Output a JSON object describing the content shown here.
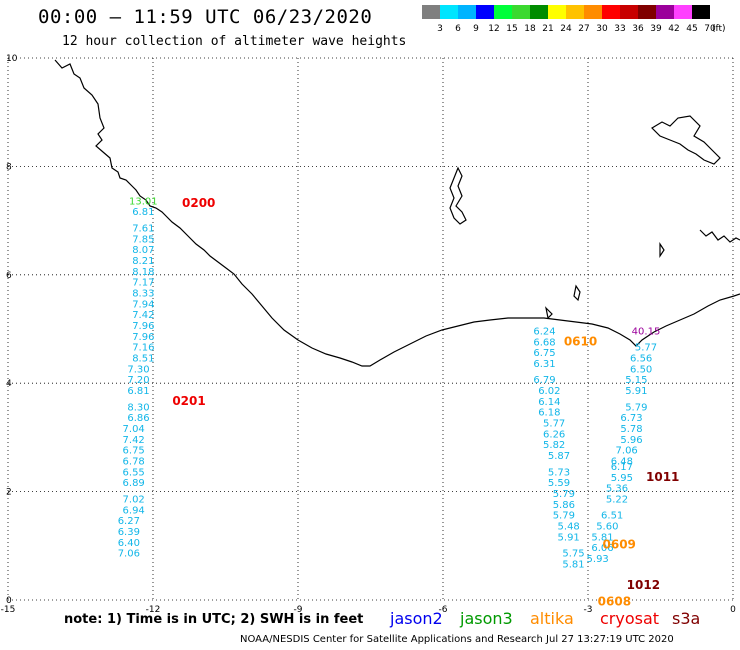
{
  "header": {
    "title": "00:00 – 11:59 UTC 06/23/2020",
    "subtitle": "12 hour collection of altimeter wave heights"
  },
  "legend": {
    "unit": "(ft)",
    "bins": [
      {
        "label": "3",
        "color": "#7f7f7f"
      },
      {
        "label": "6",
        "color": "#00e5ff"
      },
      {
        "label": "9",
        "color": "#00b4ff"
      },
      {
        "label": "12",
        "color": "#0000ff"
      },
      {
        "label": "15",
        "color": "#00ff3a"
      },
      {
        "label": "18",
        "color": "#3bd92f"
      },
      {
        "label": "21",
        "color": "#008c00"
      },
      {
        "label": "24",
        "color": "#ffff00"
      },
      {
        "label": "27",
        "color": "#ffc200"
      },
      {
        "label": "30",
        "color": "#ff8c00"
      },
      {
        "label": "33",
        "color": "#ff0000"
      },
      {
        "label": "36",
        "color": "#c80000"
      },
      {
        "label": "39",
        "color": "#800000"
      },
      {
        "label": "42",
        "color": "#9b009b"
      },
      {
        "label": "45",
        "color": "#ff40ff"
      },
      {
        "label": "70",
        "color": "#000000"
      }
    ]
  },
  "axes": {
    "lon_ticks": [
      "-15",
      "-12",
      "-9",
      "-6",
      "-3",
      "0"
    ],
    "lat_ticks": [
      "0",
      "2",
      "4",
      "6",
      "8",
      "10"
    ]
  },
  "chart_data": {
    "type": "scatter",
    "lon_range": [
      -15,
      0
    ],
    "lat_range": [
      0,
      10
    ],
    "grid": true,
    "time_labels": [
      {
        "text": "0200",
        "lon": -11.4,
        "lat": 7.25,
        "color": "#ee0000"
      },
      {
        "text": "0201",
        "lon": -11.6,
        "lat": 3.6,
        "color": "#ee0000"
      },
      {
        "text": "0610",
        "lon": -3.5,
        "lat": 4.7,
        "color": "#ff8c00"
      },
      {
        "text": "0609",
        "lon": -2.7,
        "lat": 0.95,
        "color": "#ff8c00"
      },
      {
        "text": "0608",
        "lon": -2.8,
        "lat": -0.1,
        "color": "#ff8c00"
      },
      {
        "text": "1011",
        "lon": -1.8,
        "lat": 2.2,
        "color": "#800000"
      },
      {
        "text": "1012",
        "lon": -2.2,
        "lat": 0.2,
        "color": "#800000"
      }
    ],
    "tracks": [
      {
        "color": "#12b6e8",
        "points": [
          {
            "v": "13.01",
            "lon": -12.2,
            "lat": 7.3,
            "color": "#3bd92f"
          },
          {
            "v": "6.81",
            "lon": -12.2,
            "lat": 7.1
          },
          {
            "v": "7.61",
            "lon": -12.2,
            "lat": 6.8
          },
          {
            "v": "7.85",
            "lon": -12.2,
            "lat": 6.6
          },
          {
            "v": "8.07",
            "lon": -12.2,
            "lat": 6.4
          },
          {
            "v": "8.21",
            "lon": -12.2,
            "lat": 6.2
          },
          {
            "v": "8.18",
            "lon": -12.2,
            "lat": 6.0
          },
          {
            "v": "7.17",
            "lon": -12.2,
            "lat": 5.8
          },
          {
            "v": "8.33",
            "lon": -12.2,
            "lat": 5.6
          },
          {
            "v": "7.94",
            "lon": -12.2,
            "lat": 5.4
          },
          {
            "v": "7.42",
            "lon": -12.2,
            "lat": 5.2
          },
          {
            "v": "7.96",
            "lon": -12.2,
            "lat": 5.0
          },
          {
            "v": "7.96",
            "lon": -12.2,
            "lat": 4.8
          },
          {
            "v": "7.16",
            "lon": -12.2,
            "lat": 4.6
          },
          {
            "v": "8.51",
            "lon": -12.2,
            "lat": 4.4
          },
          {
            "v": "7.30",
            "lon": -12.3,
            "lat": 4.2
          },
          {
            "v": "7.20",
            "lon": -12.3,
            "lat": 4.0
          },
          {
            "v": "6.81",
            "lon": -12.3,
            "lat": 3.8
          },
          {
            "v": "8.30",
            "lon": -12.3,
            "lat": 3.5
          },
          {
            "v": "6.86",
            "lon": -12.3,
            "lat": 3.3
          },
          {
            "v": "7.04",
            "lon": -12.4,
            "lat": 3.1
          },
          {
            "v": "7.42",
            "lon": -12.4,
            "lat": 2.9
          },
          {
            "v": "6.75",
            "lon": -12.4,
            "lat": 2.7
          },
          {
            "v": "6.78",
            "lon": -12.4,
            "lat": 2.5
          },
          {
            "v": "6.55",
            "lon": -12.4,
            "lat": 2.3
          },
          {
            "v": "6.89",
            "lon": -12.4,
            "lat": 2.1
          },
          {
            "v": "7.02",
            "lon": -12.4,
            "lat": 1.8
          },
          {
            "v": "6.94",
            "lon": -12.4,
            "lat": 1.6
          },
          {
            "v": "6.27",
            "lon": -12.5,
            "lat": 1.4
          },
          {
            "v": "6.39",
            "lon": -12.5,
            "lat": 1.2
          },
          {
            "v": "6.40",
            "lon": -12.5,
            "lat": 1.0
          },
          {
            "v": "7.06",
            "lon": -12.5,
            "lat": 0.8
          }
        ]
      },
      {
        "color": "#12b6e8",
        "points": [
          {
            "v": "6.24",
            "lon": -3.9,
            "lat": 4.9
          },
          {
            "v": "6.68",
            "lon": -3.9,
            "lat": 4.7
          },
          {
            "v": "6.75",
            "lon": -3.9,
            "lat": 4.5
          },
          {
            "v": "6.31",
            "lon": -3.9,
            "lat": 4.3
          },
          {
            "v": "6.79",
            "lon": -3.9,
            "lat": 4.0
          },
          {
            "v": "6.02",
            "lon": -3.8,
            "lat": 3.8
          },
          {
            "v": "6.14",
            "lon": -3.8,
            "lat": 3.6
          },
          {
            "v": "6.18",
            "lon": -3.8,
            "lat": 3.4
          },
          {
            "v": "5.77",
            "lon": -3.7,
            "lat": 3.2
          },
          {
            "v": "6.26",
            "lon": -3.7,
            "lat": 3.0
          },
          {
            "v": "5.82",
            "lon": -3.7,
            "lat": 2.8
          },
          {
            "v": "5.87",
            "lon": -3.6,
            "lat": 2.6
          },
          {
            "v": "5.73",
            "lon": -3.6,
            "lat": 2.3
          },
          {
            "v": "5.59",
            "lon": -3.6,
            "lat": 2.1
          },
          {
            "v": "5.79",
            "lon": -3.5,
            "lat": 1.9
          },
          {
            "v": "5.86",
            "lon": -3.5,
            "lat": 1.7
          },
          {
            "v": "5.79",
            "lon": -3.5,
            "lat": 1.5
          },
          {
            "v": "5.48",
            "lon": -3.4,
            "lat": 1.3
          },
          {
            "v": "5.91",
            "lon": -3.4,
            "lat": 1.1
          },
          {
            "v": "5.75",
            "lon": -3.3,
            "lat": 0.8
          },
          {
            "v": "5.81",
            "lon": -3.3,
            "lat": 0.6
          }
        ]
      },
      {
        "color": "#12b6e8",
        "points": [
          {
            "v": "40.15",
            "lon": -1.8,
            "lat": 4.9,
            "color": "#9b009b"
          },
          {
            "v": "5.77",
            "lon": -1.8,
            "lat": 4.6
          },
          {
            "v": "6.56",
            "lon": -1.9,
            "lat": 4.4
          },
          {
            "v": "6.50",
            "lon": -1.9,
            "lat": 4.2
          },
          {
            "v": "5.15",
            "lon": -2.0,
            "lat": 4.0
          },
          {
            "v": "5.91",
            "lon": -2.0,
            "lat": 3.8
          },
          {
            "v": "5.79",
            "lon": -2.0,
            "lat": 3.5
          },
          {
            "v": "6.73",
            "lon": -2.1,
            "lat": 3.3
          },
          {
            "v": "5.78",
            "lon": -2.1,
            "lat": 3.1
          },
          {
            "v": "5.96",
            "lon": -2.1,
            "lat": 2.9
          },
          {
            "v": "7.06",
            "lon": -2.2,
            "lat": 2.7
          },
          {
            "v": "6.48",
            "lon": -2.3,
            "lat": 2.5
          },
          {
            "v": "6.17",
            "lon": -2.3,
            "lat": 2.4
          },
          {
            "v": "5.95",
            "lon": -2.3,
            "lat": 2.2
          },
          {
            "v": "5.36",
            "lon": -2.4,
            "lat": 2.0
          },
          {
            "v": "5.22",
            "lon": -2.4,
            "lat": 1.8
          },
          {
            "v": "6.51",
            "lon": -2.5,
            "lat": 1.5
          },
          {
            "v": "5.60",
            "lon": -2.6,
            "lat": 1.3
          },
          {
            "v": "5.81",
            "lon": -2.7,
            "lat": 1.1
          },
          {
            "v": "6.06",
            "lon": -2.7,
            "lat": 0.9
          },
          {
            "v": "5.93",
            "lon": -2.8,
            "lat": 0.7
          }
        ]
      }
    ]
  },
  "footer": {
    "note": "note:  1) Time is in UTC;  2) SWH is in feet",
    "satellites": [
      {
        "name": "jason2",
        "color": "#0000ee"
      },
      {
        "name": "jason3",
        "color": "#009900"
      },
      {
        "name": "altika",
        "color": "#ff8c00"
      },
      {
        "name": "cryosat",
        "color": "#ee0000"
      },
      {
        "name": "s3a",
        "color": "#800000"
      }
    ],
    "credit": "NOAA/NESDIS Center for Satellite Applications and Research    Jul 27 13:27:19 UTC 2020"
  }
}
